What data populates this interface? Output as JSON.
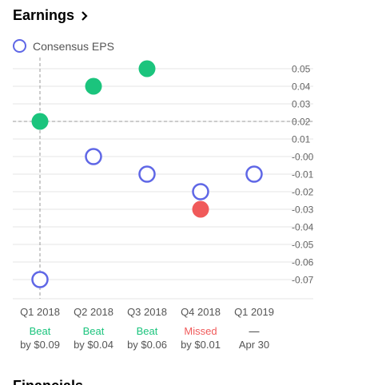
{
  "header": {
    "title": "Earnings"
  },
  "legend": {
    "label": "Consensus EPS",
    "color": "#5f67e6"
  },
  "colors": {
    "consensus": "#5f67e6",
    "beat": "#1bc47d",
    "missed": "#f05a5a",
    "grid": "#e6e6e6",
    "axis_text": "#666666"
  },
  "columns": [
    {
      "quarter": "Q1 2018",
      "result": "Beat",
      "detail": "by $0.09",
      "status": "beat"
    },
    {
      "quarter": "Q2 2018",
      "result": "Beat",
      "detail": "by $0.04",
      "status": "beat"
    },
    {
      "quarter": "Q3 2018",
      "result": "Beat",
      "detail": "by $0.06",
      "status": "beat"
    },
    {
      "quarter": "Q4 2018",
      "result": "Missed",
      "detail": "by $0.01",
      "status": "missed"
    },
    {
      "quarter": "Q1 2019",
      "result": "—",
      "detail": "Apr 30",
      "status": "pending"
    }
  ],
  "chart_data": {
    "type": "scatter",
    "title": "Earnings",
    "categories": [
      "Q1 2018",
      "Q2 2018",
      "Q3 2018",
      "Q4 2018",
      "Q1 2019"
    ],
    "series": [
      {
        "name": "Consensus EPS",
        "values": [
          -0.07,
          0.0,
          -0.01,
          -0.02,
          -0.01
        ],
        "style": "hollow"
      },
      {
        "values": [
          0.02,
          0.04,
          0.05,
          -0.03,
          null
        ],
        "style": "filled"
      }
    ],
    "y_ticks": [
      0.05,
      0.04,
      0.03,
      0.02,
      0.01,
      -0.0,
      -0.01,
      -0.02,
      -0.03,
      -0.04,
      -0.05,
      -0.06,
      -0.07
    ],
    "y_tick_labels": [
      "0.05",
      "0.04",
      "0.03",
      "0.02",
      "0.01",
      "-0.00",
      "-0.01",
      "-0.02",
      "-0.03",
      "-0.04",
      "-0.05",
      "-0.06",
      "-0.07"
    ],
    "ylim": [
      -0.08,
      0.06
    ],
    "highlight": {
      "category_index": 0,
      "value": 0.02
    },
    "grid": true,
    "legend_position": "top-left"
  },
  "footer": {
    "section_title": "Financials"
  }
}
